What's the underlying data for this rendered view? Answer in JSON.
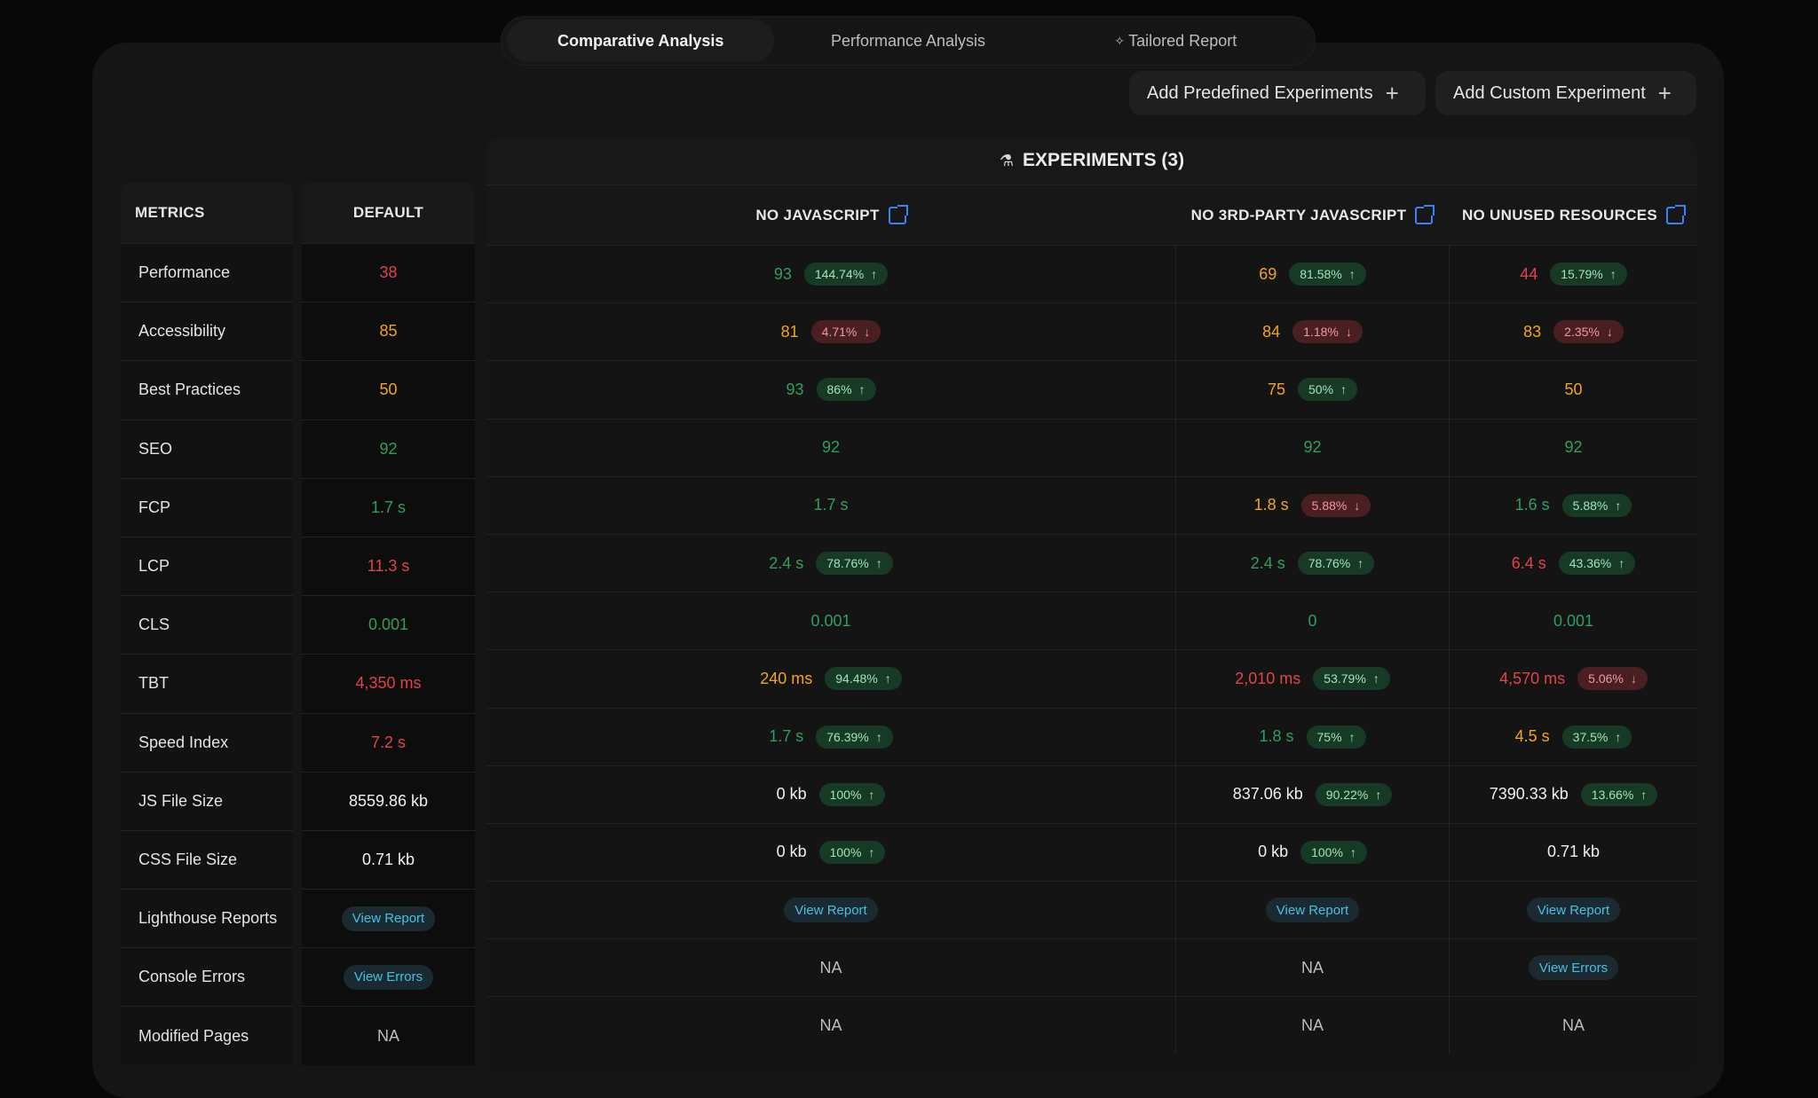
{
  "tabs": [
    {
      "label": "Comparative Analysis"
    },
    {
      "label": "Performance Analysis"
    },
    {
      "label": "Tailored Report"
    }
  ],
  "buttons": {
    "predefined": "Add Predefined Experiments",
    "custom": "Add Custom Experiment"
  },
  "metrics_header": "METRICS",
  "default_header": "DEFAULT",
  "experiments_title": "EXPERIMENTS (3)",
  "experiment_headers": [
    "NO JAVASCRIPT",
    "NO 3RD-PARTY JAVASCRIPT",
    "NO UNUSED RESOURCES"
  ],
  "colors": {
    "green": "#2f9e5f",
    "orange": "#f2a51d",
    "red": "#e0434a",
    "link": "#45c1e6",
    "accent_blue": "#3b82f6"
  },
  "rows": [
    {
      "metric": "Performance",
      "default": {
        "t": "38",
        "c": "red"
      },
      "exp": [
        {
          "t": "93",
          "c": "green",
          "b": "144.74%",
          "d": "up"
        },
        {
          "t": "69",
          "c": "orange",
          "b": "81.58%",
          "d": "up"
        },
        {
          "t": "44",
          "c": "red",
          "b": "15.79%",
          "d": "up"
        }
      ]
    },
    {
      "metric": "Accessibility",
      "default": {
        "t": "85",
        "c": "orange"
      },
      "exp": [
        {
          "t": "81",
          "c": "orange",
          "b": "4.71%",
          "d": "down"
        },
        {
          "t": "84",
          "c": "orange",
          "b": "1.18%",
          "d": "down"
        },
        {
          "t": "83",
          "c": "orange",
          "b": "2.35%",
          "d": "down"
        }
      ]
    },
    {
      "metric": "Best Practices",
      "default": {
        "t": "50",
        "c": "orange"
      },
      "exp": [
        {
          "t": "93",
          "c": "green",
          "b": "86%",
          "d": "up"
        },
        {
          "t": "75",
          "c": "orange",
          "b": "50%",
          "d": "up"
        },
        {
          "t": "50",
          "c": "orange"
        }
      ]
    },
    {
      "metric": "SEO",
      "default": {
        "t": "92",
        "c": "green"
      },
      "exp": [
        {
          "t": "92",
          "c": "green"
        },
        {
          "t": "92",
          "c": "green"
        },
        {
          "t": "92",
          "c": "green"
        }
      ]
    },
    {
      "metric": "FCP",
      "default": {
        "t": "1.7 s",
        "c": "green"
      },
      "exp": [
        {
          "t": "1.7 s",
          "c": "green"
        },
        {
          "t": "1.8 s",
          "c": "orange",
          "b": "5.88%",
          "d": "down"
        },
        {
          "t": "1.6 s",
          "c": "green",
          "b": "5.88%",
          "d": "up"
        }
      ]
    },
    {
      "metric": "LCP",
      "default": {
        "t": "11.3 s",
        "c": "red"
      },
      "exp": [
        {
          "t": "2.4 s",
          "c": "green",
          "b": "78.76%",
          "d": "up"
        },
        {
          "t": "2.4 s",
          "c": "green",
          "b": "78.76%",
          "d": "up"
        },
        {
          "t": "6.4 s",
          "c": "red",
          "b": "43.36%",
          "d": "up"
        }
      ]
    },
    {
      "metric": "CLS",
      "default": {
        "t": "0.001",
        "c": "green"
      },
      "exp": [
        {
          "t": "0.001",
          "c": "green"
        },
        {
          "t": "0",
          "c": "green"
        },
        {
          "t": "0.001",
          "c": "green"
        }
      ]
    },
    {
      "metric": "TBT",
      "default": {
        "t": "4,350 ms",
        "c": "red"
      },
      "exp": [
        {
          "t": "240 ms",
          "c": "orange",
          "b": "94.48%",
          "d": "up"
        },
        {
          "t": "2,010 ms",
          "c": "red",
          "b": "53.79%",
          "d": "up"
        },
        {
          "t": "4,570 ms",
          "c": "red",
          "b": "5.06%",
          "d": "down"
        }
      ]
    },
    {
      "metric": "Speed Index",
      "default": {
        "t": "7.2 s",
        "c": "red"
      },
      "exp": [
        {
          "t": "1.7 s",
          "c": "green",
          "b": "76.39%",
          "d": "up"
        },
        {
          "t": "1.8 s",
          "c": "green",
          "b": "75%",
          "d": "up"
        },
        {
          "t": "4.5 s",
          "c": "orange",
          "b": "37.5%",
          "d": "up"
        }
      ]
    },
    {
      "metric": "JS File Size",
      "default": {
        "t": "8559.86 kb",
        "c": "white"
      },
      "exp": [
        {
          "t": "0 kb",
          "c": "white",
          "b": "100%",
          "d": "up"
        },
        {
          "t": "837.06 kb",
          "c": "white",
          "b": "90.22%",
          "d": "up"
        },
        {
          "t": "7390.33 kb",
          "c": "white",
          "b": "13.66%",
          "d": "up"
        }
      ]
    },
    {
      "metric": "CSS File Size",
      "default": {
        "t": "0.71 kb",
        "c": "white"
      },
      "exp": [
        {
          "t": "0 kb",
          "c": "white",
          "b": "100%",
          "d": "up"
        },
        {
          "t": "0 kb",
          "c": "white",
          "b": "100%",
          "d": "up"
        },
        {
          "t": "0.71 kb",
          "c": "white"
        }
      ]
    },
    {
      "metric": "Lighthouse Reports",
      "default": {
        "link": "View Report"
      },
      "exp": [
        {
          "link": "View Report"
        },
        {
          "link": "View Report"
        },
        {
          "link": "View Report"
        }
      ]
    },
    {
      "metric": "Console Errors",
      "default": {
        "link": "View Errors"
      },
      "exp": [
        {
          "t": "NA",
          "c": "gray"
        },
        {
          "t": "NA",
          "c": "gray"
        },
        {
          "link": "View Errors"
        }
      ]
    },
    {
      "metric": "Modified Pages",
      "default": {
        "t": "NA",
        "c": "gray"
      },
      "exp": [
        {
          "t": "NA",
          "c": "gray"
        },
        {
          "t": "NA",
          "c": "gray"
        },
        {
          "t": "NA",
          "c": "gray"
        }
      ]
    }
  ]
}
